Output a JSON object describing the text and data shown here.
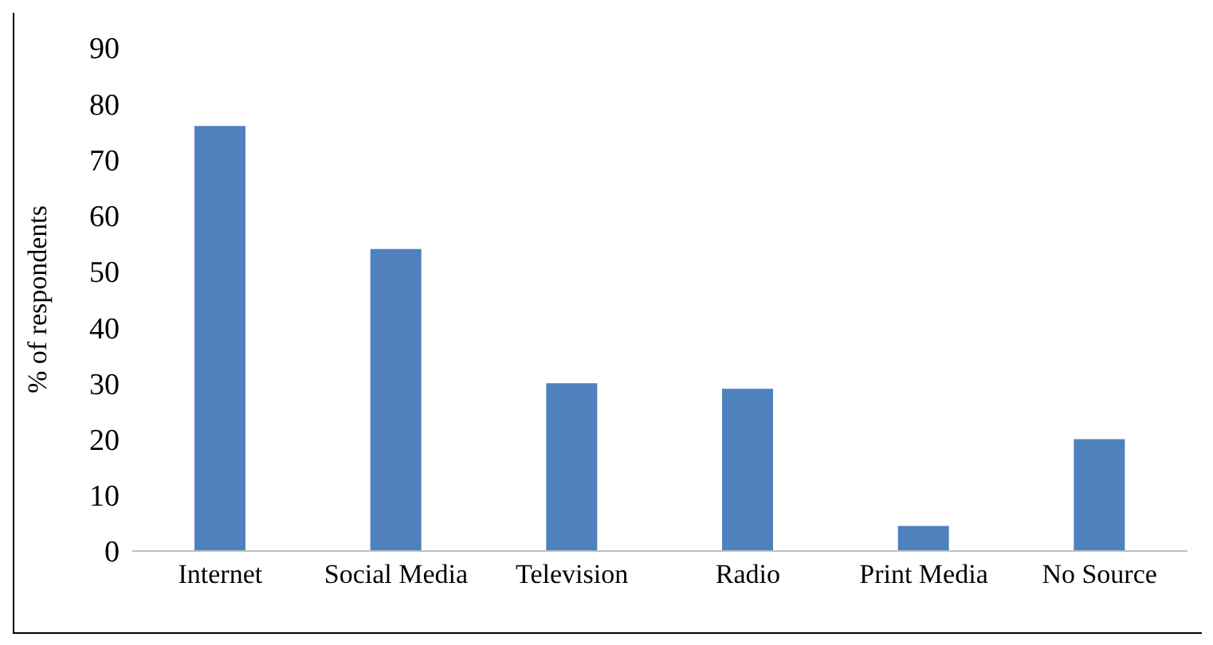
{
  "chart_data": {
    "type": "bar",
    "ylabel": "% of respondents",
    "categories": [
      "Internet",
      "Social Media",
      "Television",
      "Radio",
      "Print Media",
      "No Source"
    ],
    "values": [
      76,
      54,
      30,
      29,
      4.5,
      20
    ],
    "color": "#4f81bd",
    "ylim": [
      0,
      90
    ],
    "yticks": [
      0,
      10,
      20,
      30,
      40,
      50,
      60,
      70,
      80,
      90
    ],
    "grid": false,
    "legend": false
  }
}
